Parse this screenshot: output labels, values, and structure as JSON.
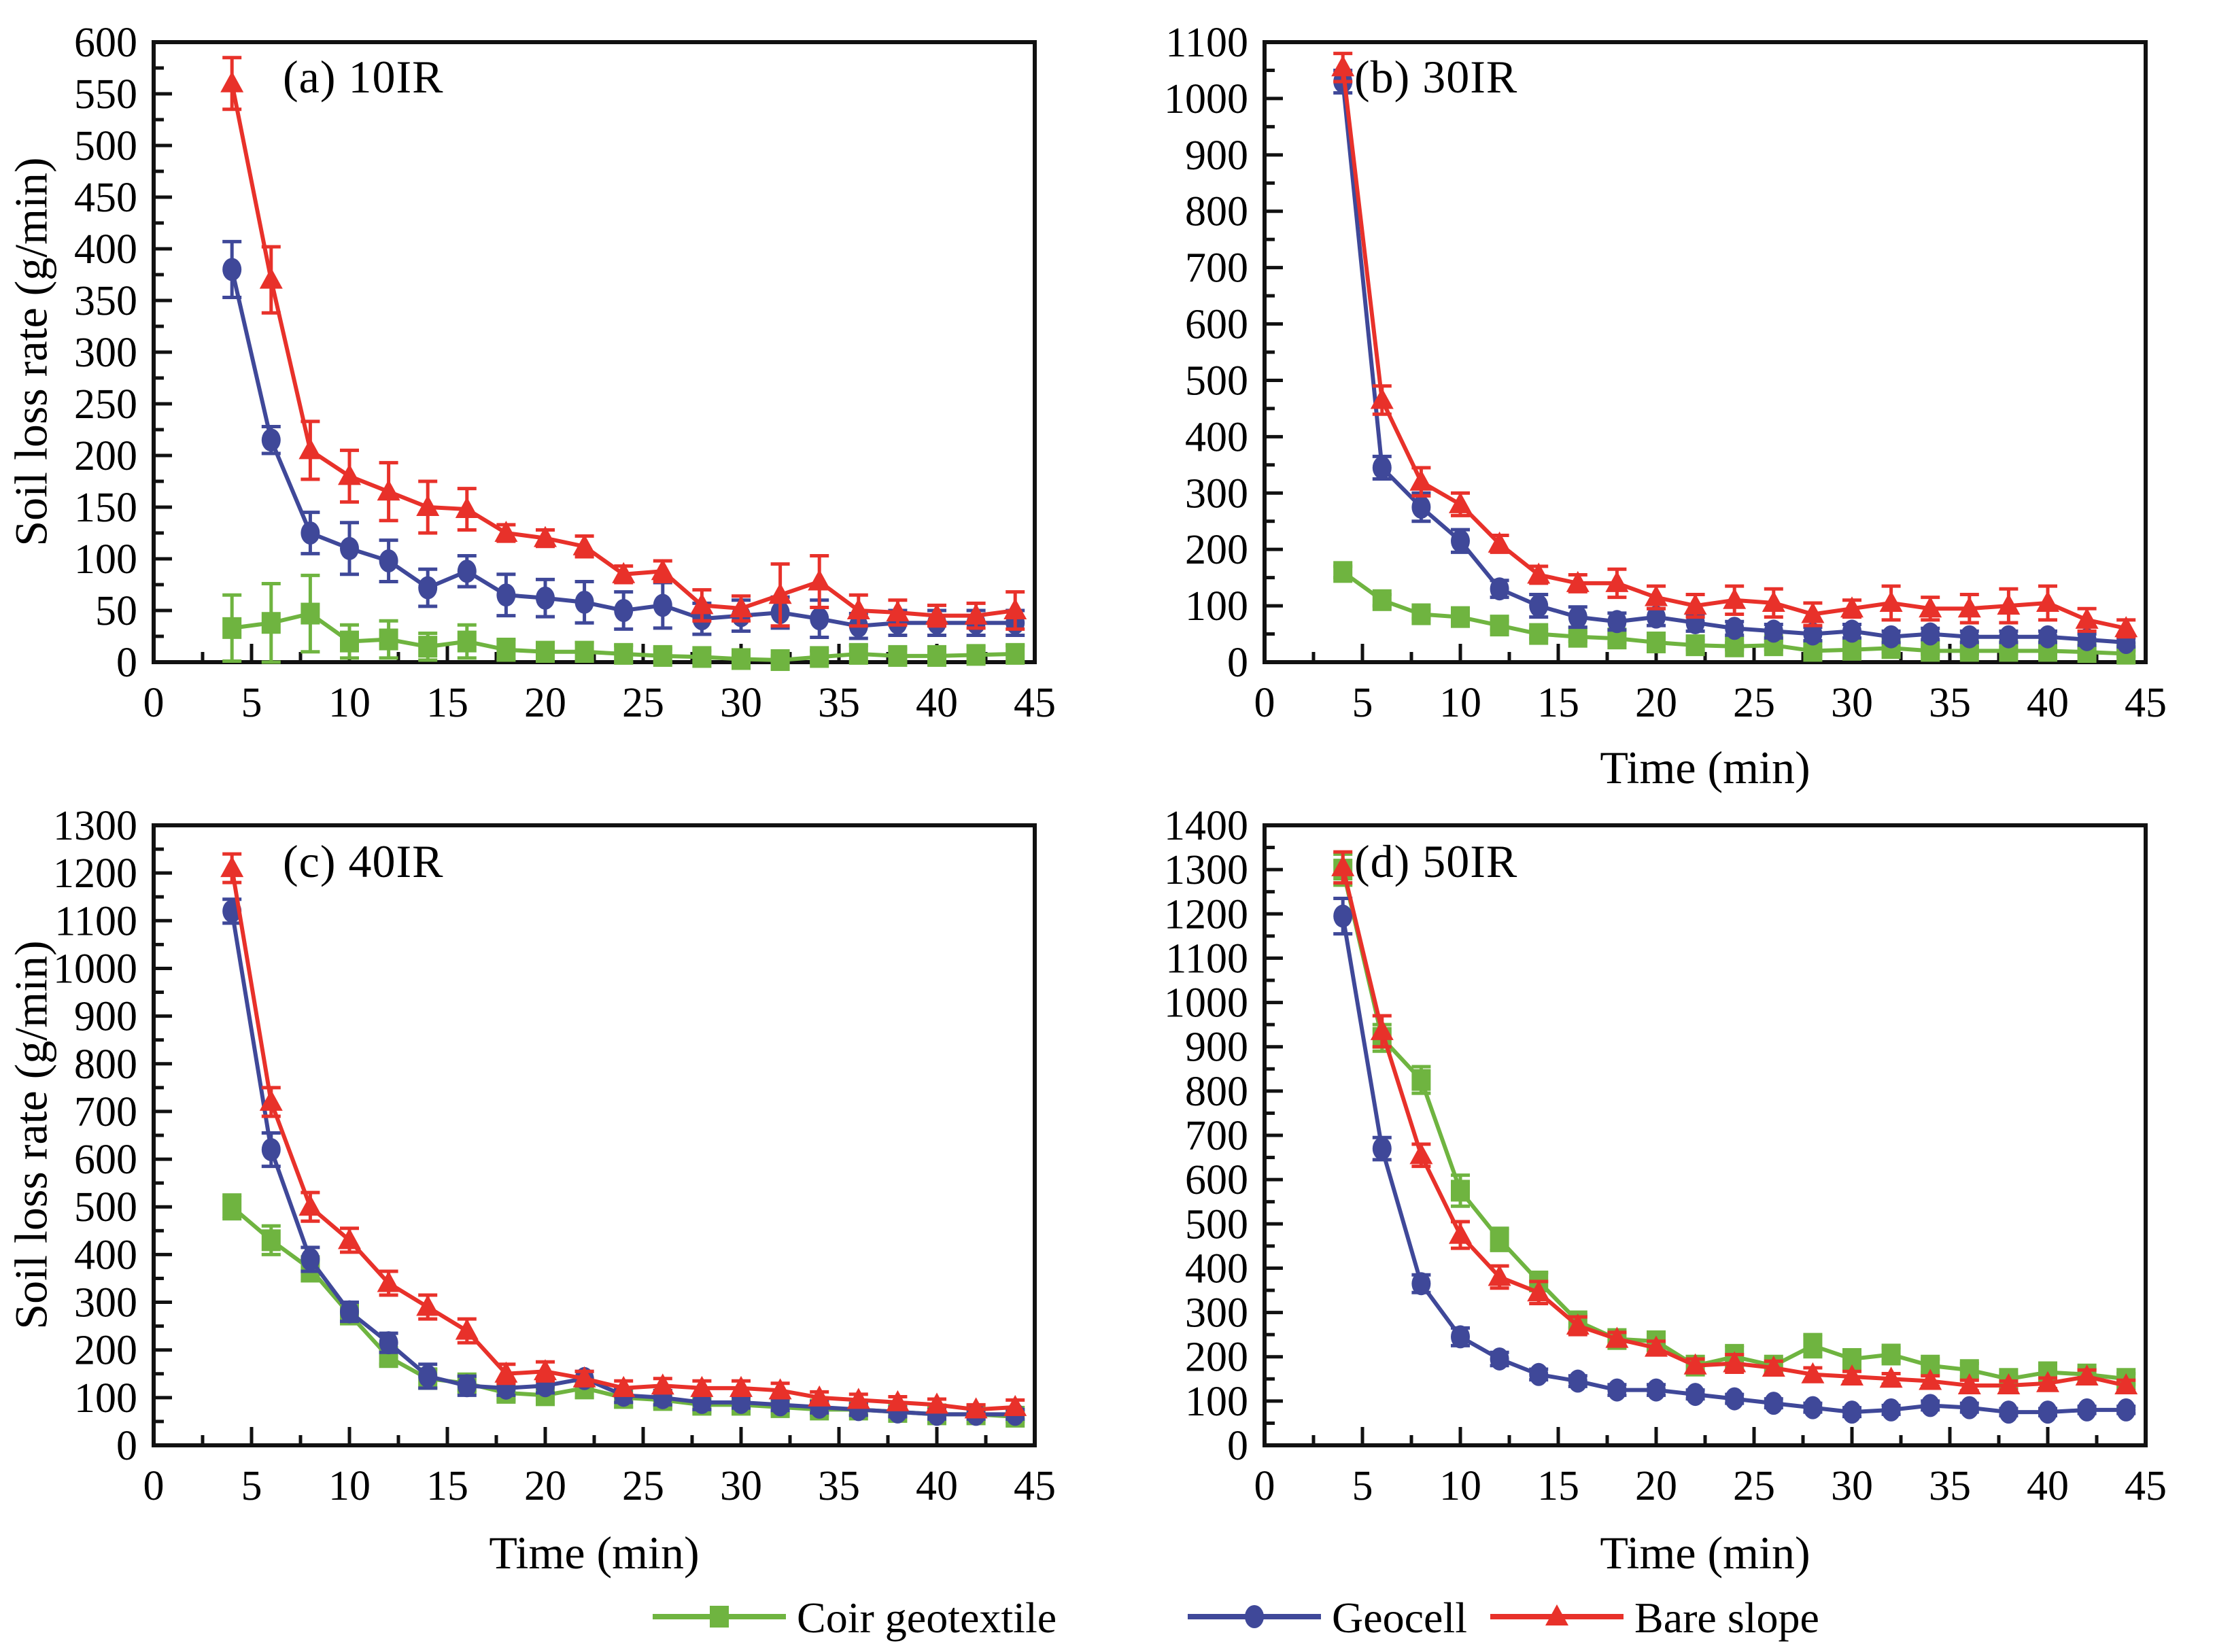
{
  "axes": {
    "ylabel": "Soil loss rate (g/min)",
    "xlabel": "Time (min)"
  },
  "legend": {
    "items": [
      {
        "label": "Coir geotextile",
        "color": "#6FB440",
        "marker": "square"
      },
      {
        "label": "Geocell",
        "color": "#3F4899",
        "marker": "circle"
      },
      {
        "label": "Bare slope",
        "color": "#E8312A",
        "marker": "triangle"
      }
    ]
  },
  "chart_data": [
    {
      "id": "a",
      "type": "line",
      "title": "(a) 10IR",
      "xlabel": "",
      "ylabel": "Soil loss rate (g/min)",
      "xlim": [
        0,
        45
      ],
      "xtick_major": 5,
      "xtick_minor": 2.5,
      "ylim": [
        0,
        600
      ],
      "ytick_major": 50,
      "ytick_minor": 25,
      "x": [
        4,
        6,
        8,
        10,
        12,
        14,
        16,
        18,
        20,
        22,
        24,
        26,
        28,
        30,
        32,
        34,
        36,
        38,
        40,
        42,
        44
      ],
      "series": [
        {
          "name": "Coir geotextile",
          "color": "#6FB440",
          "marker": "square",
          "values": [
            33,
            38,
            47,
            20,
            22,
            15,
            20,
            12,
            10,
            10,
            8,
            6,
            5,
            3,
            2,
            5,
            8,
            6,
            6,
            7,
            8
          ],
          "errors": [
            32,
            38,
            37,
            16,
            18,
            13,
            16,
            10,
            9,
            9,
            8,
            7,
            6,
            5,
            4,
            6,
            8,
            7,
            7,
            8,
            8
          ]
        },
        {
          "name": "Geocell",
          "color": "#3F4899",
          "marker": "circle",
          "values": [
            380,
            215,
            125,
            110,
            98,
            72,
            88,
            65,
            62,
            58,
            50,
            55,
            42,
            45,
            48,
            42,
            35,
            38,
            38,
            38,
            38
          ],
          "errors": [
            27,
            13,
            20,
            25,
            20,
            18,
            15,
            20,
            18,
            20,
            18,
            22,
            15,
            15,
            15,
            18,
            12,
            12,
            12,
            12,
            12
          ]
        },
        {
          "name": "Bare slope",
          "color": "#E8312A",
          "marker": "triangle",
          "values": [
            560,
            370,
            205,
            180,
            165,
            150,
            148,
            125,
            120,
            112,
            85,
            88,
            55,
            52,
            65,
            78,
            50,
            48,
            45,
            45,
            50
          ],
          "errors": [
            25,
            32,
            28,
            25,
            28,
            25,
            20,
            8,
            8,
            10,
            8,
            10,
            15,
            12,
            30,
            25,
            15,
            12,
            10,
            12,
            18
          ]
        }
      ]
    },
    {
      "id": "b",
      "type": "line",
      "title": "(b) 30IR",
      "xlabel": "Time (min)",
      "ylabel": "",
      "xlim": [
        0,
        45
      ],
      "xtick_major": 5,
      "xtick_minor": 2.5,
      "ylim": [
        0,
        1100
      ],
      "ytick_major": 100,
      "ytick_minor": 50,
      "x": [
        4,
        6,
        8,
        10,
        12,
        14,
        16,
        18,
        20,
        22,
        24,
        26,
        28,
        30,
        32,
        34,
        36,
        38,
        40,
        42,
        44
      ],
      "series": [
        {
          "name": "Coir geotextile",
          "color": "#6FB440",
          "marker": "square",
          "values": [
            160,
            110,
            85,
            80,
            65,
            50,
            45,
            42,
            35,
            30,
            28,
            30,
            20,
            22,
            25,
            20,
            20,
            20,
            20,
            18,
            15
          ],
          "errors": [
            10,
            10,
            8,
            8,
            8,
            8,
            8,
            8,
            8,
            8,
            6,
            8,
            6,
            6,
            8,
            6,
            6,
            6,
            6,
            6,
            5
          ]
        },
        {
          "name": "Geocell",
          "color": "#3F4899",
          "marker": "circle",
          "values": [
            1030,
            345,
            275,
            215,
            130,
            100,
            80,
            72,
            80,
            70,
            60,
            55,
            50,
            55,
            45,
            50,
            45,
            45,
            45,
            40,
            35
          ],
          "errors": [
            20,
            20,
            25,
            20,
            15,
            20,
            18,
            15,
            15,
            15,
            12,
            12,
            12,
            12,
            10,
            10,
            10,
            10,
            10,
            10,
            8
          ]
        },
        {
          "name": "Bare slope",
          "color": "#E8312A",
          "marker": "triangle",
          "values": [
            1055,
            465,
            320,
            280,
            210,
            155,
            140,
            140,
            115,
            100,
            110,
            105,
            85,
            95,
            105,
            95,
            95,
            100,
            105,
            75,
            60
          ],
          "errors": [
            25,
            25,
            25,
            20,
            15,
            15,
            15,
            25,
            20,
            20,
            25,
            25,
            20,
            15,
            30,
            20,
            25,
            30,
            30,
            20,
            15
          ]
        }
      ]
    },
    {
      "id": "c",
      "type": "line",
      "title": "(c) 40IR",
      "xlabel": "Time (min)",
      "ylabel": "Soil loss rate (g/min)",
      "xlim": [
        0,
        45
      ],
      "xtick_major": 5,
      "xtick_minor": 2.5,
      "ylim": [
        0,
        1300
      ],
      "ytick_major": 100,
      "ytick_minor": 50,
      "x": [
        4,
        6,
        8,
        10,
        12,
        14,
        16,
        18,
        20,
        22,
        24,
        26,
        28,
        30,
        32,
        34,
        36,
        38,
        40,
        42,
        44
      ],
      "series": [
        {
          "name": "Coir geotextile",
          "color": "#6FB440",
          "marker": "square",
          "values": [
            500,
            430,
            370,
            275,
            185,
            140,
            130,
            110,
            105,
            120,
            100,
            95,
            85,
            85,
            80,
            75,
            75,
            70,
            65,
            65,
            60
          ],
          "errors": [
            25,
            30,
            25,
            20,
            15,
            20,
            15,
            15,
            15,
            20,
            20,
            15,
            15,
            12,
            12,
            12,
            12,
            10,
            10,
            10,
            10
          ]
        },
        {
          "name": "Geocell",
          "color": "#3F4899",
          "marker": "circle",
          "values": [
            1120,
            620,
            390,
            280,
            215,
            145,
            125,
            120,
            125,
            140,
            105,
            100,
            90,
            90,
            85,
            80,
            75,
            70,
            65,
            65,
            65
          ],
          "errors": [
            25,
            35,
            25,
            20,
            20,
            25,
            20,
            15,
            15,
            15,
            15,
            15,
            15,
            12,
            12,
            12,
            12,
            10,
            10,
            10,
            10
          ]
        },
        {
          "name": "Bare slope",
          "color": "#E8312A",
          "marker": "triangle",
          "values": [
            1210,
            720,
            500,
            430,
            340,
            290,
            240,
            150,
            155,
            140,
            120,
            125,
            120,
            120,
            115,
            100,
            95,
            90,
            85,
            75,
            80
          ],
          "errors": [
            30,
            30,
            30,
            25,
            25,
            25,
            25,
            20,
            20,
            15,
            15,
            15,
            15,
            15,
            15,
            12,
            12,
            12,
            12,
            10,
            15
          ]
        }
      ]
    },
    {
      "id": "d",
      "type": "line",
      "title": "(d) 50IR",
      "xlabel": "Time (min)",
      "ylabel": "",
      "xlim": [
        0,
        45
      ],
      "xtick_major": 5,
      "xtick_minor": 2.5,
      "ylim": [
        0,
        1400
      ],
      "ytick_major": 100,
      "ytick_minor": 50,
      "x": [
        4,
        6,
        8,
        10,
        12,
        14,
        16,
        18,
        20,
        22,
        24,
        26,
        28,
        30,
        32,
        34,
        36,
        38,
        40,
        42,
        44
      ],
      "series": [
        {
          "name": "Coir geotextile",
          "color": "#6FB440",
          "marker": "square",
          "values": [
            1300,
            920,
            825,
            575,
            465,
            370,
            280,
            240,
            235,
            180,
            200,
            180,
            225,
            195,
            205,
            180,
            170,
            150,
            165,
            160,
            150
          ],
          "errors": [
            35,
            30,
            30,
            35,
            25,
            20,
            15,
            15,
            15,
            20,
            25,
            15,
            25,
            20,
            15,
            15,
            15,
            10,
            15,
            12,
            12
          ]
        },
        {
          "name": "Geocell",
          "color": "#3F4899",
          "marker": "circle",
          "values": [
            1195,
            670,
            365,
            245,
            195,
            160,
            145,
            125,
            125,
            115,
            105,
            95,
            85,
            75,
            80,
            90,
            85,
            75,
            75,
            80,
            80
          ],
          "errors": [
            40,
            25,
            20,
            20,
            15,
            12,
            12,
            12,
            12,
            10,
            10,
            10,
            10,
            10,
            10,
            10,
            10,
            8,
            8,
            8,
            8
          ]
        },
        {
          "name": "Bare slope",
          "color": "#E8312A",
          "marker": "triangle",
          "values": [
            1305,
            935,
            655,
            475,
            380,
            345,
            270,
            240,
            220,
            180,
            185,
            175,
            160,
            155,
            150,
            145,
            135,
            135,
            140,
            155,
            135
          ],
          "errors": [
            35,
            35,
            25,
            30,
            25,
            25,
            20,
            15,
            15,
            15,
            20,
            15,
            15,
            12,
            12,
            12,
            12,
            10,
            12,
            15,
            12
          ]
        }
      ]
    }
  ]
}
